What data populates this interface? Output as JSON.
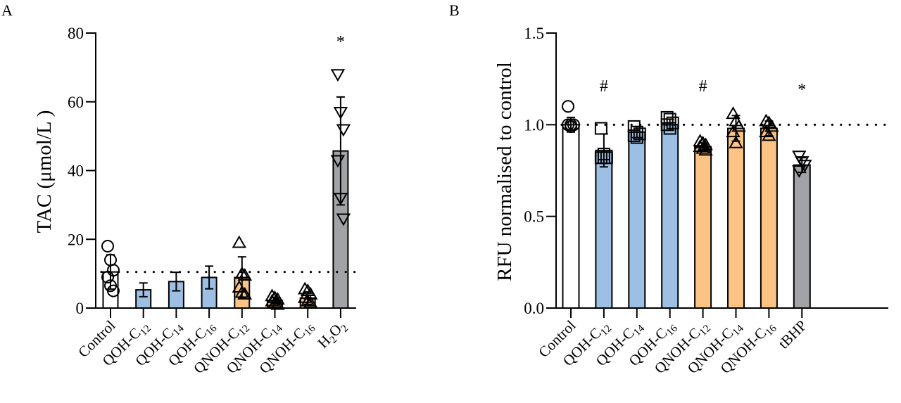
{
  "colors": {
    "control": "#ffffff",
    "qoh": "#9dbfe4",
    "qnoh": "#fbc384",
    "positive": "#a2a3a6",
    "stroke": "#000000"
  },
  "chart_data": [
    {
      "panel": "A",
      "type": "bar",
      "ylabel": "TAC (μmol/L )",
      "xlabel": "",
      "ylim": [
        0,
        80
      ],
      "yticks": [
        0,
        20,
        40,
        60,
        80
      ],
      "reference_line": 10.5,
      "categories": [
        "Control",
        "QOH-C12",
        "QOH-C14",
        "QOH-C16",
        "QNOH-C12",
        "QNOH-C14",
        "QNOH-C16",
        "H2O2"
      ],
      "category_labels": [
        {
          "main": "Control",
          "sub": ""
        },
        {
          "main": "QOH-C",
          "sub": "12"
        },
        {
          "main": "QOH-C",
          "sub": "14"
        },
        {
          "main": "QOH-C",
          "sub": "16"
        },
        {
          "main": "QNOH-C",
          "sub": "12"
        },
        {
          "main": "QNOH-C",
          "sub": "14"
        },
        {
          "main": "QNOH-C",
          "sub": "16"
        },
        {
          "main": "H",
          "sub": "2",
          "main2": "O",
          "sub2": "2"
        }
      ],
      "groups": [
        "control",
        "qoh",
        "qoh",
        "qoh",
        "qnoh",
        "qnoh",
        "qnoh",
        "positive"
      ],
      "markers": [
        "circle",
        "square",
        "square",
        "square",
        "triangle-up",
        "triangle-up",
        "triangle-up",
        "triangle-down"
      ],
      "values": [
        10.5,
        5.3,
        7.7,
        8.9,
        8.9,
        2.2,
        2.9,
        45.7
      ],
      "errors": [
        5.0,
        2.0,
        2.7,
        3.3,
        6.0,
        0.8,
        1.8,
        15.7
      ],
      "points": [
        [
          18.0,
          14.0,
          11.0,
          9.0,
          6.5,
          5.0
        ],
        [],
        [],
        [],
        [
          19.0,
          10.0,
          9.5,
          6.0,
          4.5,
          4.0
        ],
        [
          3.5,
          3.0,
          2.5,
          2.0,
          1.5,
          1.0
        ],
        [
          5.5,
          5.0,
          4.0,
          3.0,
          2.0,
          1.5
        ],
        [
          68.0,
          57.0,
          52.0,
          43.0,
          32.0,
          26.0
        ]
      ],
      "annotations": [
        {
          "category": "H2O2",
          "text": "*",
          "y": 78
        }
      ]
    },
    {
      "panel": "B",
      "type": "bar",
      "ylabel": "RFU normalised to control",
      "xlabel": "",
      "ylim": [
        0,
        1.5
      ],
      "yticks": [
        "0.0",
        "0.5",
        "1.0",
        "1.5"
      ],
      "reference_line": 1.0,
      "categories": [
        "Control",
        "QOH-C12",
        "QOH-C14",
        "QOH-C16",
        "QNOH-C12",
        "QNOH-C14",
        "QNOH-C16",
        "tBHP"
      ],
      "category_labels": [
        {
          "main": "Control",
          "sub": ""
        },
        {
          "main": "QOH-C",
          "sub": "12"
        },
        {
          "main": "QOH-C",
          "sub": "14"
        },
        {
          "main": "QOH-C",
          "sub": "16"
        },
        {
          "main": "QNOH-C",
          "sub": "12"
        },
        {
          "main": "QNOH-C",
          "sub": "14"
        },
        {
          "main": "QNOH-C",
          "sub": "16"
        },
        {
          "main": "tBHP",
          "sub": ""
        }
      ],
      "groups": [
        "control",
        "qoh",
        "qoh",
        "qoh",
        "qnoh",
        "qnoh",
        "qnoh",
        "positive"
      ],
      "markers": [
        "circle",
        "square",
        "square",
        "square",
        "triangle-up",
        "triangle-up",
        "triangle-up",
        "triangle-down"
      ],
      "values": [
        1.0,
        0.86,
        0.96,
        1.0,
        0.88,
        0.98,
        0.98,
        0.78
      ],
      "errors": [
        0.04,
        0.09,
        0.03,
        0.03,
        0.02,
        0.07,
        0.04,
        0.04
      ],
      "points": [
        [
          1.1,
          1.0,
          1.0,
          1.0,
          0.99
        ],
        [
          0.98,
          0.84,
          0.82,
          0.82,
          0.82
        ],
        [
          0.99,
          0.96,
          0.95,
          0.94,
          0.93
        ],
        [
          1.04,
          1.03,
          1.01,
          1.0,
          0.98
        ],
        [
          0.91,
          0.9,
          0.89,
          0.88,
          0.87,
          0.86
        ],
        [
          1.06,
          1.02,
          0.99,
          0.96,
          0.9
        ],
        [
          1.02,
          1.01,
          0.99,
          0.96,
          0.94
        ],
        [
          0.83,
          0.8,
          0.78,
          0.75
        ]
      ],
      "annotations": [
        {
          "category": "QOH-C12",
          "text": "#",
          "y": 1.22
        },
        {
          "category": "QNOH-C12",
          "text": "#",
          "y": 1.22
        },
        {
          "category": "tBHP",
          "text": "*",
          "y": 1.2
        }
      ]
    }
  ],
  "panels": {
    "a_label": "A",
    "b_label": "B"
  }
}
